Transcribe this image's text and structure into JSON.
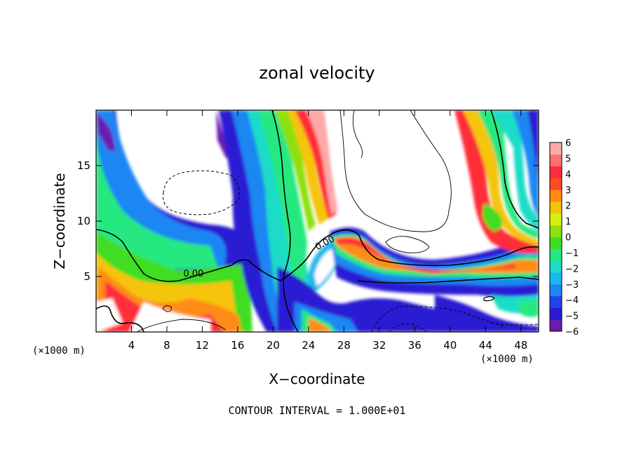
{
  "chart_data": {
    "type": "heatmap",
    "title": "zonal velocity",
    "xlabel": "X−coordinate",
    "ylabel": "Z−coordinate",
    "x_unit_label": "(×1000 m)",
    "y_unit_label": "(×1000 m)",
    "xlim": [
      0,
      50
    ],
    "ylim": [
      0,
      20
    ],
    "x_ticks": [
      4,
      8,
      12,
      16,
      20,
      24,
      28,
      32,
      36,
      40,
      44,
      48
    ],
    "y_ticks": [
      5,
      10,
      15
    ],
    "footer": "CONTOUR INTERVAL = 1.000E+01",
    "contour_labels": [
      {
        "text": "0.00",
        "x": 11.0,
        "z": 5.0
      },
      {
        "text": "0.00",
        "x": 26.0,
        "z": 7.8
      }
    ],
    "colorbar": {
      "min": -6,
      "max": 6,
      "ticks": [
        "6",
        "5",
        "4",
        "3",
        "2",
        "1",
        "0",
        "−1",
        "−2",
        "−3",
        "−4",
        "−5",
        "−6"
      ],
      "colors": [
        "#6a1bb0",
        "#2a1ad2",
        "#1f45ef",
        "#1d86f3",
        "#1ab8ee",
        "#1ddcc8",
        "#26e880",
        "#3fdd22",
        "#8ee010",
        "#d8f00e",
        "#f5c40a",
        "#ff8c14",
        "#ff4a22",
        "#ff2d39",
        "#ff6f6f",
        "#ffa9a9"
      ]
    }
  }
}
